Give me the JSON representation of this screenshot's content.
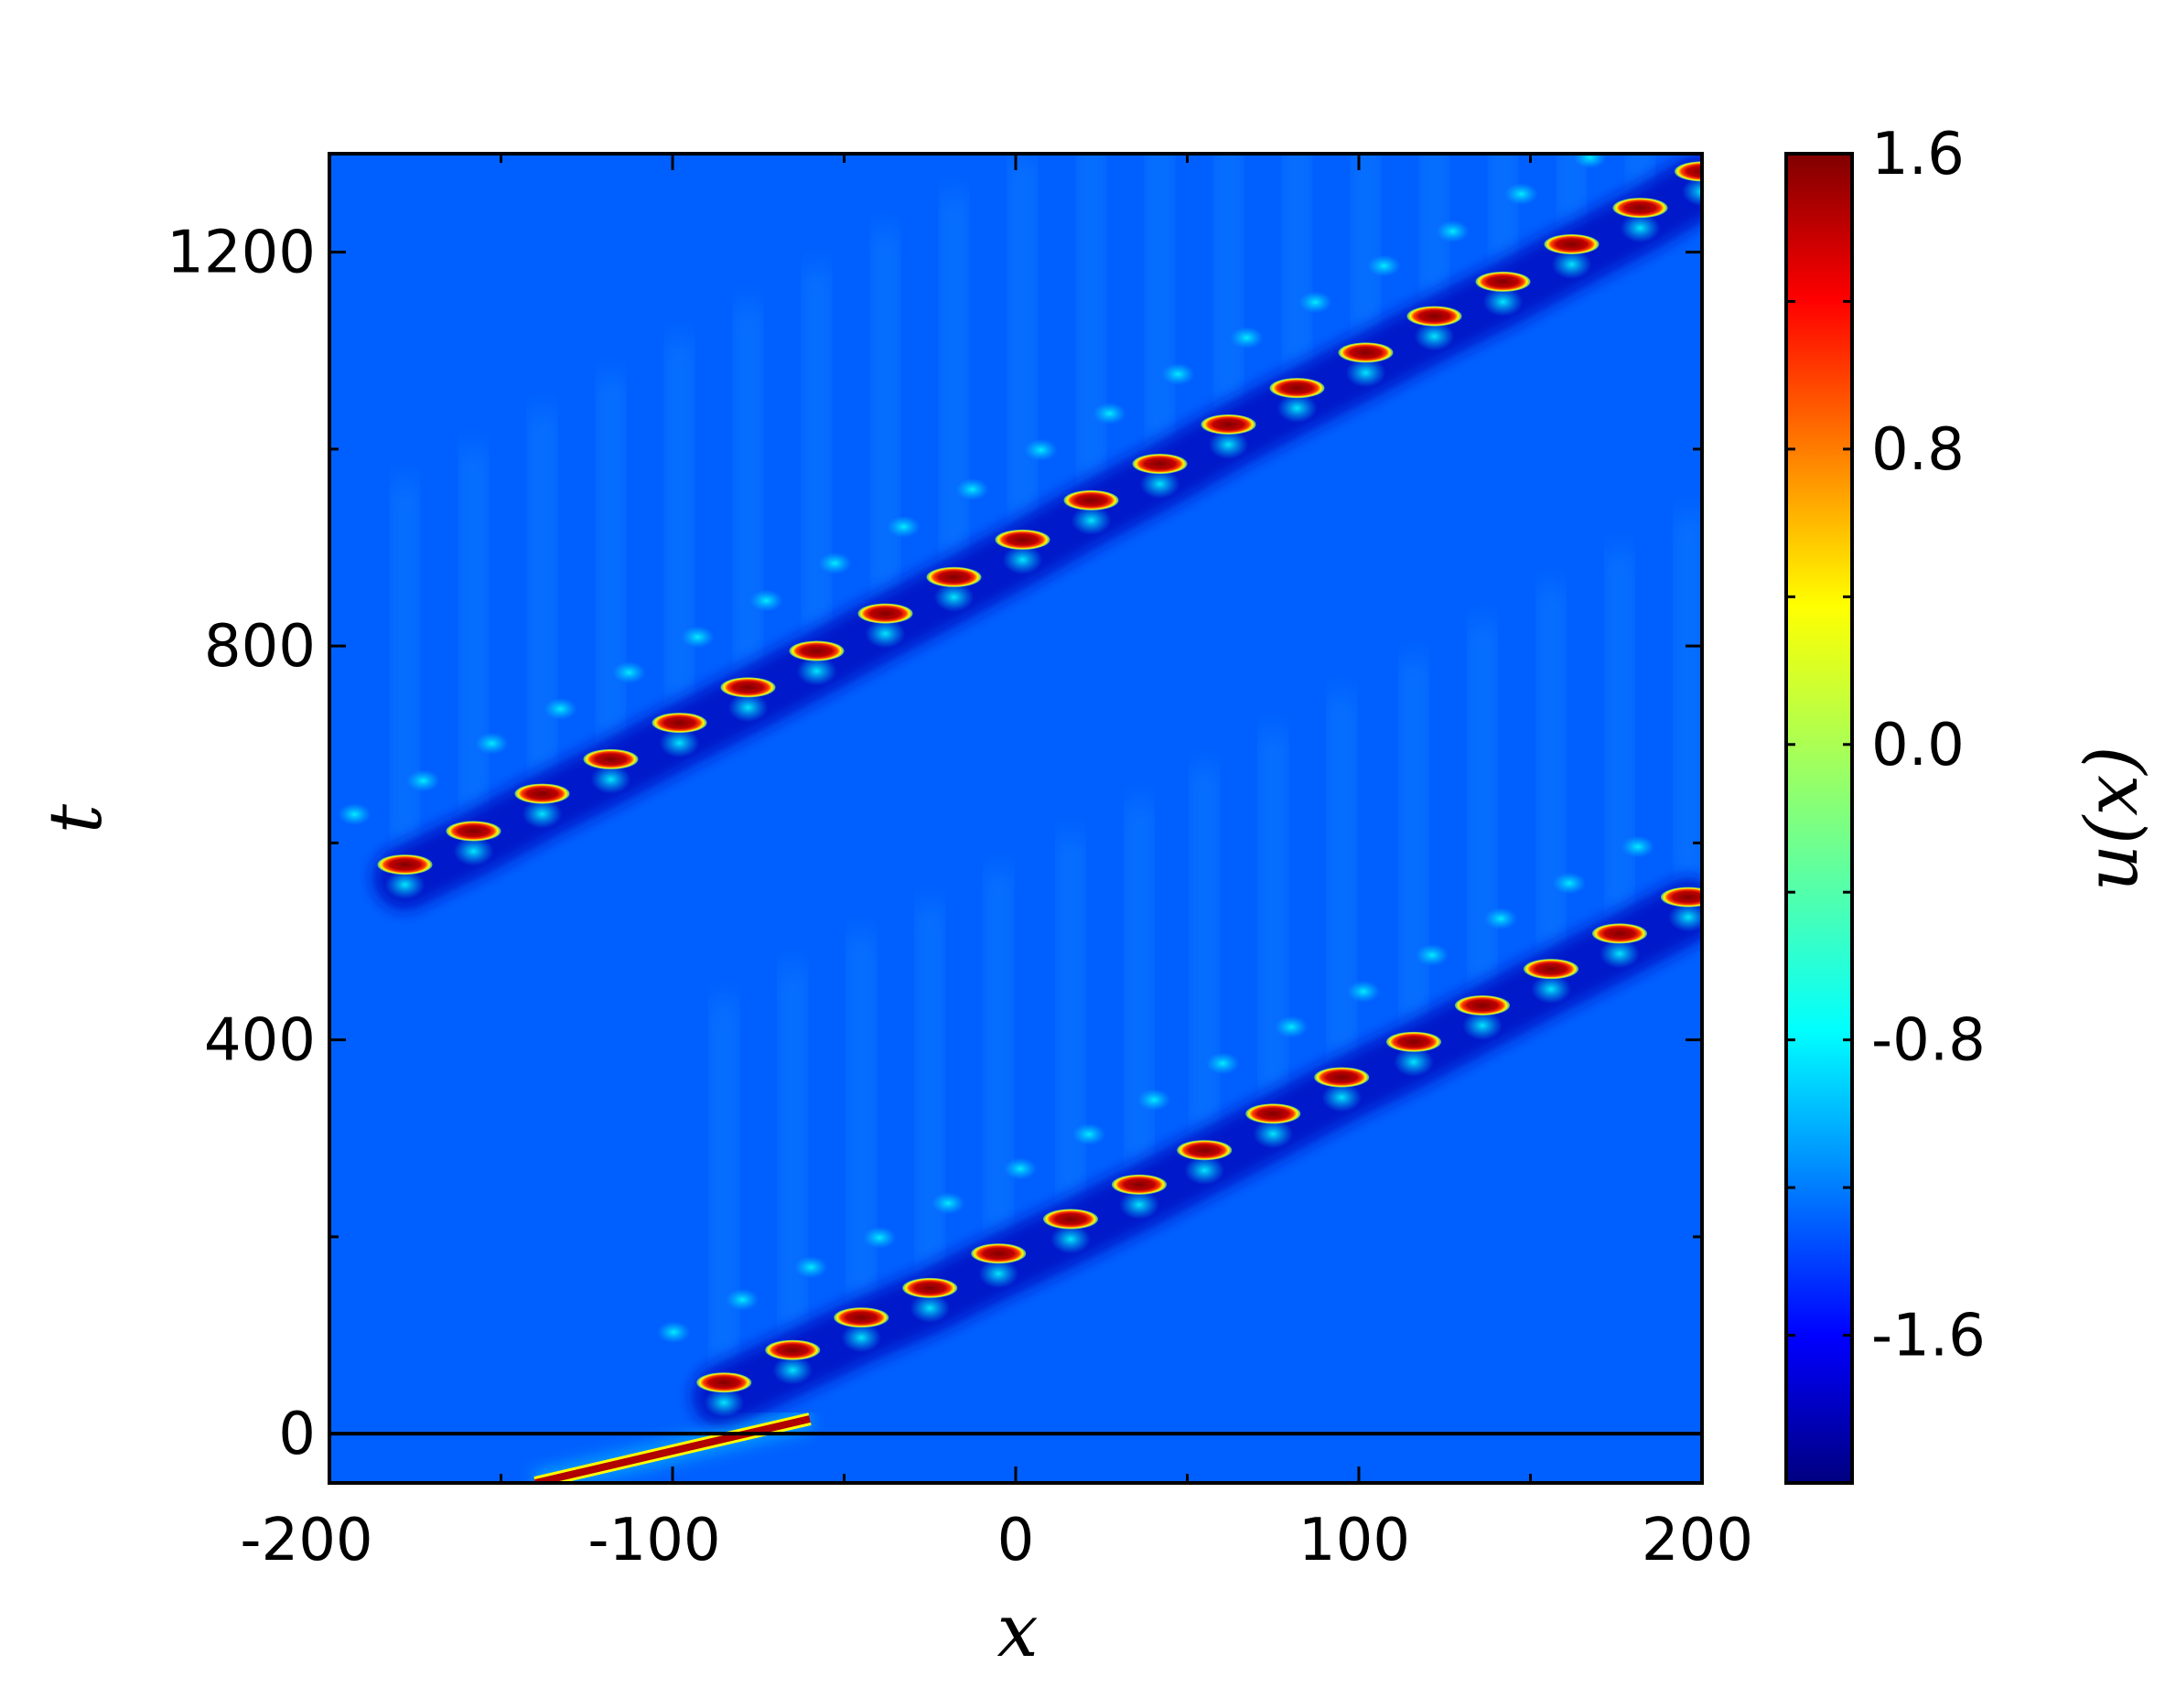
{
  "chart_data": {
    "type": "heatmap",
    "title": "",
    "xlabel": "x",
    "ylabel": "t",
    "xlim": [
      -200,
      200
    ],
    "ylim": [
      -50,
      1300
    ],
    "xticks": [
      -200,
      -100,
      0,
      100,
      200
    ],
    "yticks": [
      0,
      400,
      800,
      1200
    ],
    "xtick_labels": [
      "-200",
      "-100",
      "0",
      "100",
      "200"
    ],
    "ytick_labels": [
      "0",
      "400",
      "800",
      "1200"
    ],
    "colorbar": {
      "label": "u(x)",
      "range": [
        -2.0,
        1.6
      ],
      "ticks": [
        1.6,
        0.8,
        0.0,
        -0.8,
        -1.6
      ],
      "tick_labels": [
        "1.6",
        "0.8",
        "0.0",
        "-0.8",
        "-1.6"
      ],
      "colormap": "jet"
    },
    "background_value": -1.15,
    "reference_line_t": 0,
    "initial_streak": {
      "x0": -140,
      "t0": -50,
      "x1": -60,
      "t1": 15,
      "value": 1.6
    },
    "peaks": [
      {
        "x": -85,
        "t": 52
      },
      {
        "x": -65,
        "t": 85
      },
      {
        "x": -45,
        "t": 118
      },
      {
        "x": -25,
        "t": 148
      },
      {
        "x": -5,
        "t": 183
      },
      {
        "x": 16,
        "t": 218
      },
      {
        "x": 36,
        "t": 253
      },
      {
        "x": 55,
        "t": 288
      },
      {
        "x": 75,
        "t": 325
      },
      {
        "x": 95,
        "t": 362
      },
      {
        "x": 116,
        "t": 398
      },
      {
        "x": 136,
        "t": 435
      },
      {
        "x": 156,
        "t": 472
      },
      {
        "x": 176,
        "t": 508
      },
      {
        "x": 196,
        "t": 545
      },
      {
        "x": -178,
        "t": 578
      },
      {
        "x": -158,
        "t": 612
      },
      {
        "x": -138,
        "t": 650
      },
      {
        "x": -118,
        "t": 685
      },
      {
        "x": -98,
        "t": 722
      },
      {
        "x": -78,
        "t": 758
      },
      {
        "x": -58,
        "t": 795
      },
      {
        "x": -38,
        "t": 833
      },
      {
        "x": -18,
        "t": 870
      },
      {
        "x": 2,
        "t": 908
      },
      {
        "x": 22,
        "t": 948
      },
      {
        "x": 42,
        "t": 985
      },
      {
        "x": 62,
        "t": 1025
      },
      {
        "x": 82,
        "t": 1062
      },
      {
        "x": 102,
        "t": 1098
      },
      {
        "x": 122,
        "t": 1135
      },
      {
        "x": 142,
        "t": 1170
      },
      {
        "x": 162,
        "t": 1208
      },
      {
        "x": 182,
        "t": 1245
      },
      {
        "x": 200,
        "t": 1282
      }
    ]
  }
}
